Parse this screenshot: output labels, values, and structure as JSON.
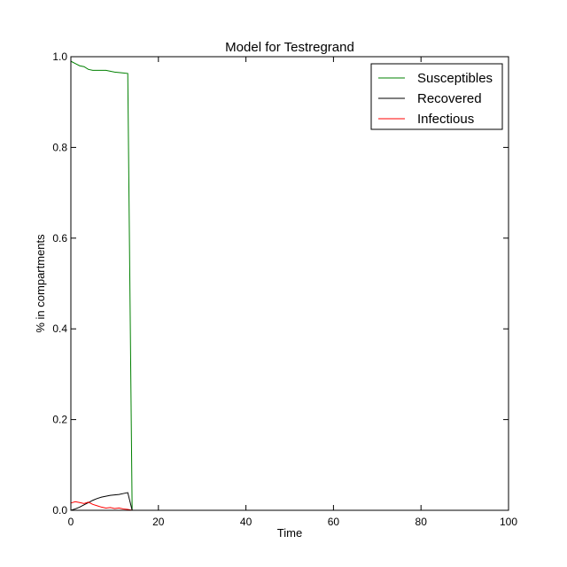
{
  "chart_data": {
    "type": "line",
    "title": "Model for Testregrand",
    "xlabel": "Time",
    "ylabel": "% in compartments",
    "xlim": [
      0,
      100
    ],
    "ylim": [
      0,
      1.0
    ],
    "x_ticks": [
      0,
      20,
      40,
      60,
      80,
      100
    ],
    "x_tick_labels": [
      "0",
      "20",
      "40",
      "60",
      "80",
      "100"
    ],
    "y_ticks": [
      0,
      0.2,
      0.4,
      0.6,
      0.8,
      1.0
    ],
    "y_tick_labels": [
      "0.0",
      "0.2",
      "0.4",
      "0.6",
      "0.8",
      "1.0"
    ],
    "grid": false,
    "legend_position": "top-right",
    "series": [
      {
        "name": "Susceptibles",
        "color": "#008000",
        "x": [
          0,
          1,
          2,
          3,
          4,
          5,
          6,
          7,
          8,
          9,
          10,
          11,
          12,
          13,
          14,
          100
        ],
        "y": [
          0.99,
          0.985,
          0.98,
          0.978,
          0.972,
          0.97,
          0.97,
          0.97,
          0.97,
          0.968,
          0.966,
          0.965,
          0.964,
          0.963,
          0.0,
          0.0
        ]
      },
      {
        "name": "Recovered",
        "color": "#000000",
        "x": [
          0,
          1,
          2,
          3,
          4,
          5,
          6,
          7,
          8,
          9,
          10,
          11,
          12,
          13,
          14,
          100
        ],
        "y": [
          0.0,
          0.003,
          0.007,
          0.012,
          0.017,
          0.022,
          0.026,
          0.029,
          0.031,
          0.033,
          0.034,
          0.035,
          0.037,
          0.039,
          0.0,
          0.0
        ]
      },
      {
        "name": "Infectious",
        "color": "#ff0000",
        "x": [
          0,
          1,
          2,
          3,
          4,
          5,
          6,
          7,
          8,
          9,
          10,
          11,
          12,
          13,
          14,
          100
        ],
        "y": [
          0.016,
          0.019,
          0.017,
          0.015,
          0.018,
          0.013,
          0.01,
          0.007,
          0.005,
          0.006,
          0.004,
          0.005,
          0.003,
          0.002,
          0.0,
          0.0
        ]
      }
    ]
  }
}
